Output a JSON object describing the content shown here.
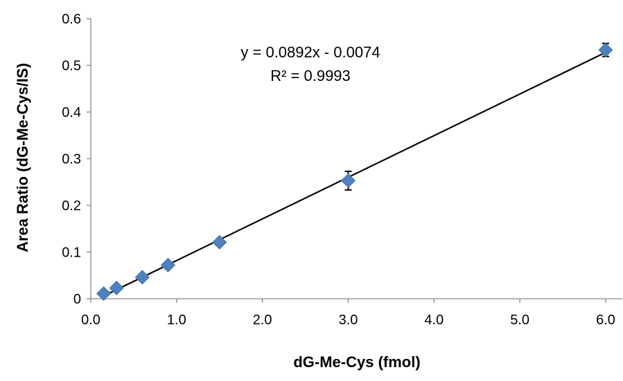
{
  "chart_data": {
    "type": "scatter",
    "title": "",
    "xlabel": "dG-Me-Cys (fmol)",
    "ylabel": "Area Ratio (dG-Me-Cys/IS)",
    "xlim": [
      0,
      6
    ],
    "ylim": [
      0,
      0.6
    ],
    "x_ticks": [
      0,
      1,
      2,
      3,
      4,
      5,
      6
    ],
    "x_tick_labels": [
      "0.0",
      "1.0",
      "2.0",
      "3.0",
      "4.0",
      "5.0",
      "6.0"
    ],
    "y_ticks": [
      0,
      0.1,
      0.2,
      0.3,
      0.4,
      0.5,
      0.6
    ],
    "y_tick_labels": [
      "0",
      "0.1",
      "0.2",
      "0.3",
      "0.4",
      "0.5",
      "0.6"
    ],
    "grid": false,
    "legend": "none",
    "marker": "diamond",
    "marker_color": "#4F81BD",
    "series": [
      {
        "x": [
          0.15,
          0.3,
          0.6,
          0.9,
          1.5,
          3.0,
          6.0
        ],
        "y": [
          0.011,
          0.023,
          0.046,
          0.072,
          0.121,
          0.253,
          0.533
        ],
        "error": [
          0.003,
          0.003,
          0.003,
          0.003,
          0.004,
          0.02,
          0.014
        ]
      }
    ],
    "trendline": {
      "type": "linear",
      "slope": 0.0892,
      "intercept": -0.0074,
      "x_range": [
        0.15,
        6.0
      ],
      "color": "#000000"
    },
    "annotations": {
      "equation": "y = 0.0892x - 0.0074",
      "r_squared": "R² = 0.9993"
    }
  }
}
